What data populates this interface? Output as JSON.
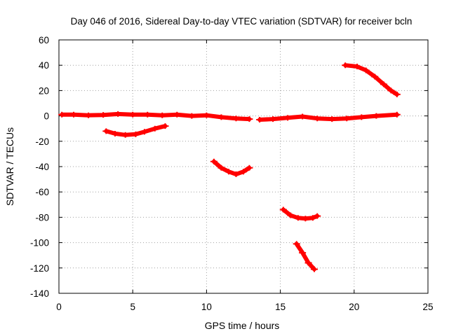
{
  "chart_data": {
    "type": "scatter",
    "title": "Day 046 of 2016, Sidereal Day-to-day VTEC variation (SDTVAR) for receiver bcln",
    "xlabel": "GPS time / hours",
    "ylabel": "SDTVAR / TECUs",
    "xlim": [
      0,
      25
    ],
    "ylim": [
      -140,
      60
    ],
    "xticks": [
      0,
      5,
      10,
      15,
      20,
      25
    ],
    "yticks": [
      60,
      40,
      20,
      0,
      -20,
      -40,
      -60,
      -80,
      -100,
      -120,
      -140
    ],
    "grid": true,
    "legend": "none",
    "color": "#ff0000",
    "series": [
      {
        "x": [
          0.2,
          1,
          2,
          3,
          4,
          5,
          6,
          7,
          8,
          9,
          10,
          11,
          12,
          12.9
        ],
        "y": [
          1,
          1,
          0.5,
          0.8,
          1.5,
          1,
          1,
          0.5,
          1,
          0,
          0.5,
          -1,
          -2,
          -2.5
        ]
      },
      {
        "x": [
          13.6,
          14.5,
          15.5,
          16.5,
          17.5,
          18.5,
          19.5,
          20.5,
          21.5,
          22.9
        ],
        "y": [
          -3,
          -2.5,
          -1.5,
          -0.5,
          -2,
          -2.5,
          -2,
          -1,
          0,
          1
        ]
      },
      {
        "x": [
          3.2,
          3.8,
          4.5,
          5.2,
          5.8,
          6.5,
          7.2
        ],
        "y": [
          -12,
          -14,
          -15,
          -14.5,
          -12.5,
          -10,
          -8
        ]
      },
      {
        "x": [
          10.5,
          11.0,
          11.5,
          12.0,
          12.5,
          12.9
        ],
        "y": [
          -36,
          -41,
          -44,
          -46,
          -44,
          -41
        ]
      },
      {
        "x": [
          15.2,
          15.7,
          16.2,
          16.7,
          17.2,
          17.5
        ],
        "y": [
          -74,
          -78.5,
          -80.5,
          -81,
          -80.5,
          -79
        ]
      },
      {
        "x": [
          16.1,
          16.5,
          16.9,
          17.3
        ],
        "y": [
          -101,
          -108,
          -116,
          -121
        ]
      },
      {
        "x": [
          19.4,
          20.2,
          20.8,
          21.4,
          22.0,
          22.5,
          22.9
        ],
        "y": [
          40,
          39,
          36,
          31,
          25,
          20,
          17
        ]
      }
    ]
  }
}
